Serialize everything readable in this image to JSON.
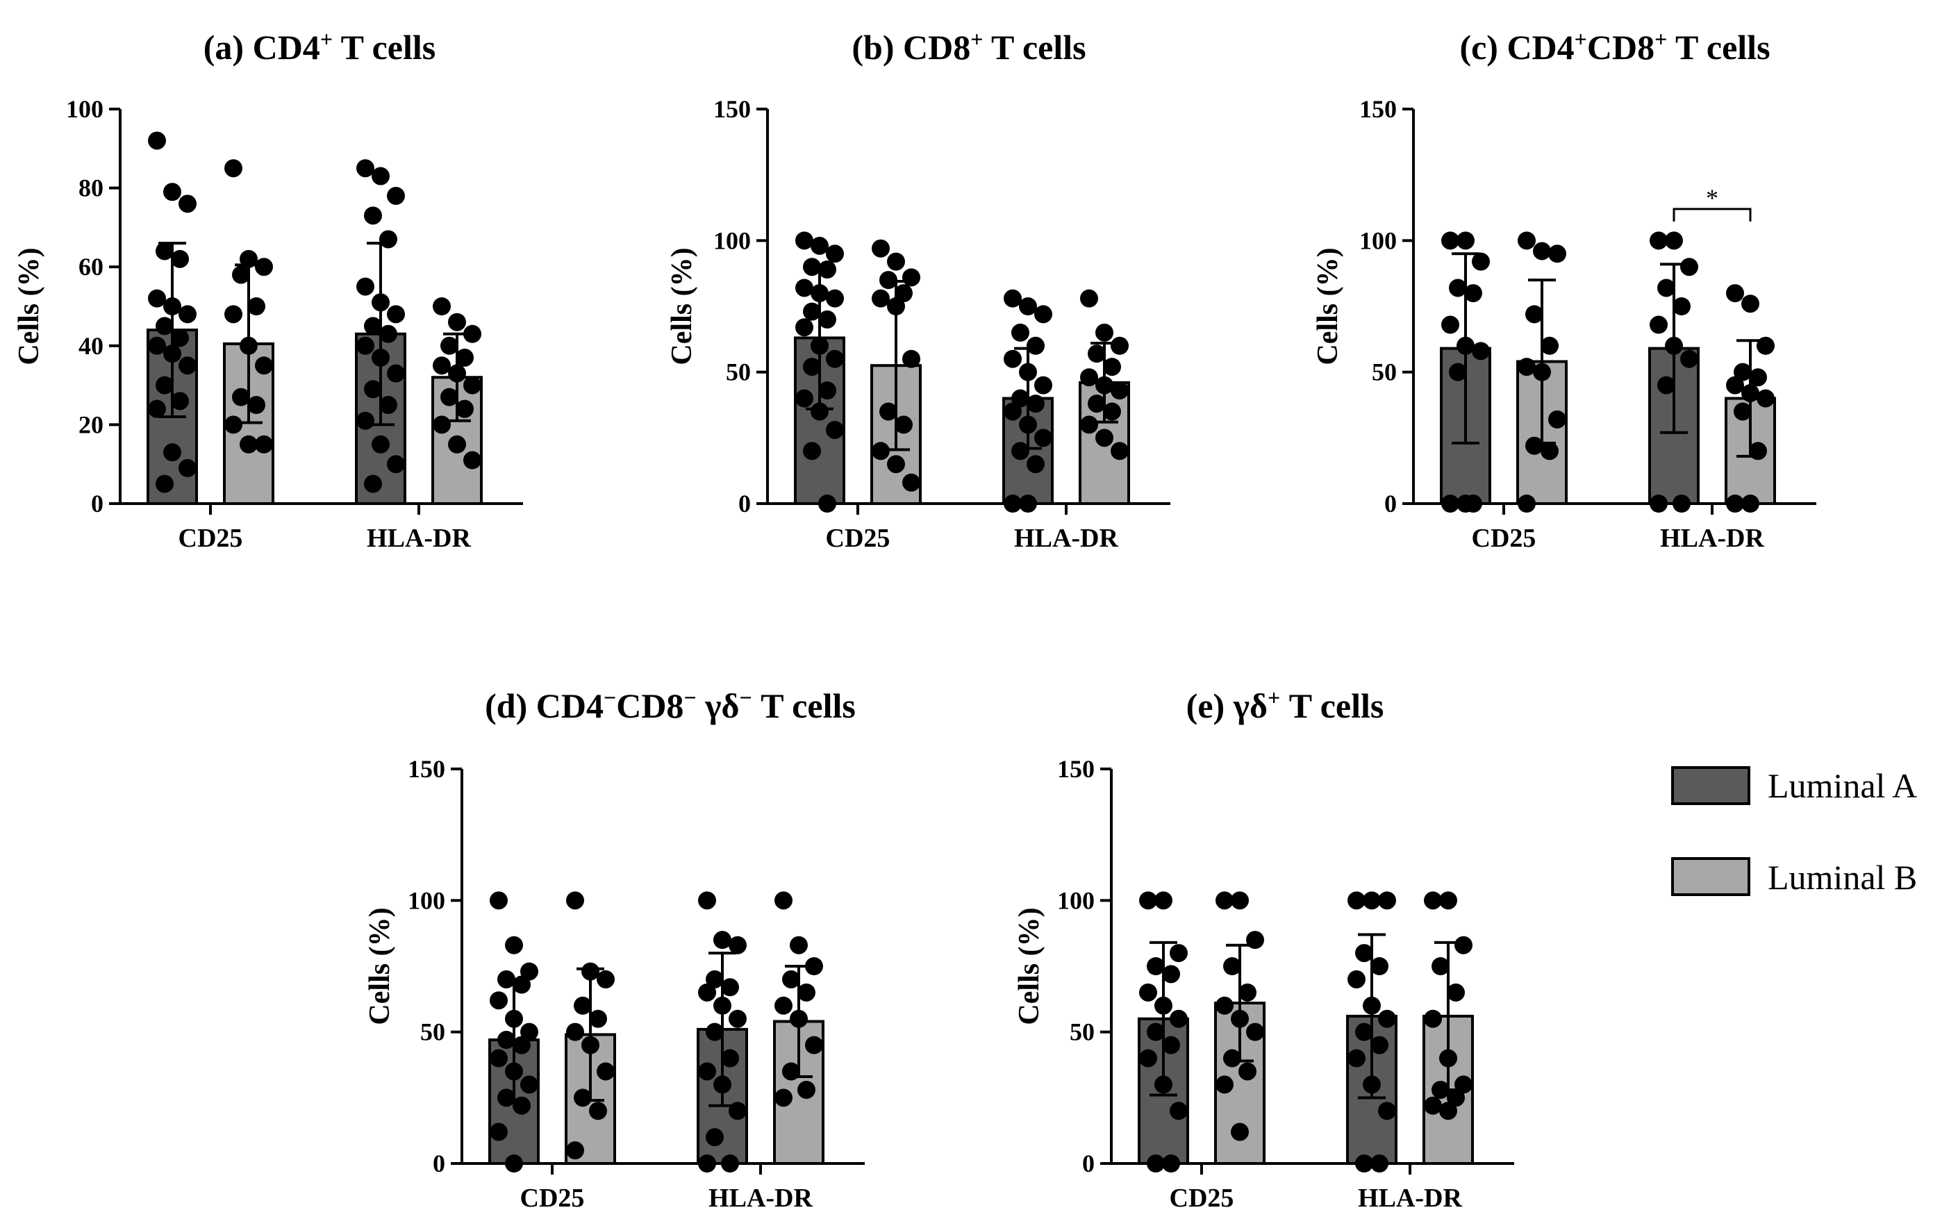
{
  "chart_data": [
    {
      "id": "a",
      "type": "bar",
      "title_parts": [
        {
          "text": "(a) CD4"
        },
        {
          "text": "+",
          "sup": true
        },
        {
          "text": " T cells"
        }
      ],
      "ylabel": "Cells (%)",
      "ylim": [
        0,
        100
      ],
      "yticks": [
        0,
        20,
        40,
        60,
        80,
        100
      ],
      "categories": [
        "CD25",
        "HLA-DR"
      ],
      "series": [
        {
          "name": "Luminal A",
          "means": [
            44,
            43
          ],
          "sd": [
            22,
            23
          ],
          "points": [
            [
              92,
              79,
              76,
              64,
              62,
              52,
              50,
              48,
              45,
              42,
              40,
              38,
              35,
              30,
              26,
              24,
              13,
              9,
              5
            ],
            [
              85,
              83,
              78,
              73,
              67,
              55,
              51,
              48,
              45,
              43,
              40,
              37,
              33,
              29,
              25,
              21,
              15,
              10,
              5
            ]
          ]
        },
        {
          "name": "Luminal B",
          "means": [
            40.5,
            32
          ],
          "sd": [
            20,
            11
          ],
          "points": [
            [
              85,
              62,
              60,
              58,
              50,
              48,
              40,
              35,
              27,
              25,
              20,
              15,
              15
            ],
            [
              50,
              46,
              43,
              40,
              37,
              35,
              33,
              30,
              27,
              24,
              20,
              15,
              11
            ]
          ]
        }
      ],
      "annotations": []
    },
    {
      "id": "b",
      "type": "bar",
      "title_parts": [
        {
          "text": "(b) CD8"
        },
        {
          "text": "+",
          "sup": true
        },
        {
          "text": " T cells"
        }
      ],
      "ylabel": "Cells (%)",
      "ylim": [
        0,
        150
      ],
      "yticks": [
        0,
        50,
        100,
        150
      ],
      "categories": [
        "CD25",
        "HLA-DR"
      ],
      "series": [
        {
          "name": "Luminal A",
          "means": [
            63,
            40
          ],
          "sd": [
            27,
            19
          ],
          "points": [
            [
              100,
              98,
              95,
              90,
              89,
              82,
              80,
              78,
              73,
              70,
              67,
              60,
              55,
              52,
              43,
              40,
              35,
              28,
              20,
              0
            ],
            [
              78,
              75,
              72,
              65,
              60,
              55,
              50,
              45,
              40,
              38,
              35,
              30,
              25,
              20,
              15,
              0,
              0
            ]
          ]
        },
        {
          "name": "Luminal B",
          "means": [
            52.5,
            46
          ],
          "sd": [
            32,
            15
          ],
          "points": [
            [
              97,
              92,
              86,
              85,
              80,
              78,
              75,
              55,
              35,
              30,
              20,
              15,
              8
            ],
            [
              78,
              65,
              60,
              57,
              52,
              48,
              45,
              43,
              38,
              35,
              30,
              25,
              20
            ]
          ]
        }
      ],
      "annotations": []
    },
    {
      "id": "c",
      "type": "bar",
      "title_parts": [
        {
          "text": "(c) CD4"
        },
        {
          "text": "+",
          "sup": true
        },
        {
          "text": "CD8"
        },
        {
          "text": "+",
          "sup": true
        },
        {
          "text": " T cells"
        }
      ],
      "ylabel": "Cells (%)",
      "ylim": [
        0,
        150
      ],
      "yticks": [
        0,
        50,
        100,
        150
      ],
      "categories": [
        "CD25",
        "HLA-DR"
      ],
      "series": [
        {
          "name": "Luminal A",
          "means": [
            59,
            59
          ],
          "sd": [
            36,
            32
          ],
          "points": [
            [
              100,
              100,
              92,
              82,
              80,
              68,
              60,
              58,
              50,
              0,
              0,
              0
            ],
            [
              100,
              100,
              90,
              82,
              75,
              68,
              60,
              55,
              45,
              0,
              0
            ]
          ]
        },
        {
          "name": "Luminal B",
          "means": [
            54,
            40
          ],
          "sd": [
            31,
            22
          ],
          "points": [
            [
              100,
              96,
              95,
              72,
              60,
              52,
              50,
              32,
              22,
              20,
              0
            ],
            [
              80,
              76,
              60,
              50,
              48,
              45,
              42,
              40,
              35,
              20,
              0,
              0
            ]
          ]
        }
      ],
      "annotations": [
        {
          "text": "*",
          "between": "HLA-DR Luminal A vs Luminal B",
          "at_value": 112
        }
      ]
    },
    {
      "id": "d",
      "type": "bar",
      "title_parts": [
        {
          "text": "(d) CD4"
        },
        {
          "text": "−",
          "sup": true
        },
        {
          "text": "CD8"
        },
        {
          "text": "−",
          "sup": true
        },
        {
          "text": " γδ"
        },
        {
          "text": "−",
          "sup": true
        },
        {
          "text": " T cells"
        }
      ],
      "ylabel": "Cells (%)",
      "ylim": [
        0,
        150
      ],
      "yticks": [
        0,
        50,
        100,
        150
      ],
      "categories": [
        "CD25",
        "HLA-DR"
      ],
      "series": [
        {
          "name": "Luminal A",
          "means": [
            47,
            51
          ],
          "sd": [
            23,
            29
          ],
          "points": [
            [
              100,
              83,
              73,
              70,
              68,
              62,
              55,
              50,
              47,
              45,
              40,
              35,
              30,
              25,
              22,
              12,
              0
            ],
            [
              100,
              85,
              83,
              70,
              67,
              65,
              60,
              55,
              50,
              40,
              35,
              30,
              20,
              10,
              0,
              0
            ]
          ]
        },
        {
          "name": "Luminal B",
          "means": [
            49,
            54
          ],
          "sd": [
            25,
            21
          ],
          "points": [
            [
              100,
              73,
              70,
              60,
              55,
              50,
              45,
              35,
              25,
              20,
              5
            ],
            [
              100,
              83,
              75,
              70,
              65,
              60,
              55,
              45,
              35,
              28,
              25
            ]
          ]
        }
      ],
      "annotations": []
    },
    {
      "id": "e",
      "type": "bar",
      "title_parts": [
        {
          "text": "(e) γδ"
        },
        {
          "text": "+",
          "sup": true
        },
        {
          "text": " T cells"
        }
      ],
      "ylabel": "Cells (%)",
      "ylim": [
        0,
        150
      ],
      "yticks": [
        0,
        50,
        100,
        150
      ],
      "categories": [
        "CD25",
        "HLA-DR"
      ],
      "series": [
        {
          "name": "Luminal A",
          "means": [
            55,
            56
          ],
          "sd": [
            29,
            31
          ],
          "points": [
            [
              100,
              100,
              80,
              75,
              72,
              65,
              60,
              55,
              50,
              45,
              40,
              30,
              20,
              0,
              0
            ],
            [
              100,
              100,
              100,
              80,
              75,
              70,
              60,
              55,
              50,
              45,
              40,
              30,
              20,
              0,
              0
            ]
          ]
        },
        {
          "name": "Luminal B",
          "means": [
            61,
            56
          ],
          "sd": [
            22,
            28
          ],
          "points": [
            [
              100,
              100,
              85,
              75,
              65,
              60,
              55,
              50,
              40,
              35,
              30,
              12
            ],
            [
              100,
              100,
              83,
              75,
              65,
              55,
              40,
              30,
              28,
              25,
              22,
              20
            ]
          ]
        }
      ],
      "annotations": []
    }
  ],
  "legend": {
    "items": [
      {
        "label": "Luminal A",
        "color": "#5a5a5a"
      },
      {
        "label": "Luminal B",
        "color": "#a8a8a8"
      }
    ]
  },
  "colors": {
    "luminal_a": "#5a5a5a",
    "luminal_b": "#a8a8a8",
    "ink": "#000000"
  }
}
